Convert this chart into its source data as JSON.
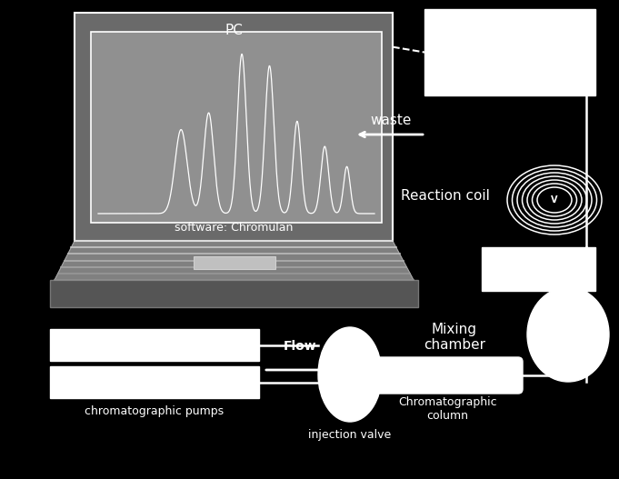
{
  "bg_color": "#000000",
  "white": "#ffffff",
  "screen_bezel_color": "#707070",
  "screen_inner_color": "#999999",
  "keyboard_color": "#888888",
  "keyboard_stripe_color": "#b0b0b0",
  "base_color": "#666666",
  "base_bottom_color": "#555555",
  "title_pc": "PC",
  "title_software": "software: Chromulan",
  "label_waste": "waste",
  "label_reaction_coil": "Reaction coil",
  "label_mixing_chamber": "Mixing\nchamber",
  "label_chrom_pumps": "chromatographic pumps",
  "label_injection_valve": "injection valve",
  "label_chrom_column": "Chromatographic\ncolumn",
  "label_flow": "Flow"
}
